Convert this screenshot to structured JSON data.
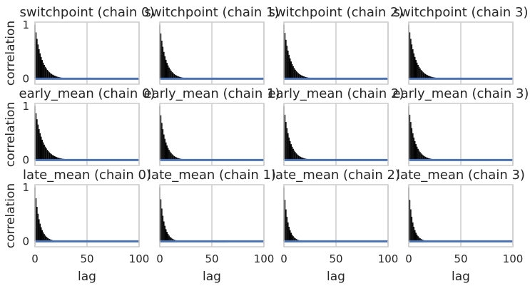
{
  "chart_data": {
    "type": "bar",
    "layout": {
      "rows": 3,
      "cols": 4
    },
    "xlim": [
      0,
      100
    ],
    "ylim": [
      -0.1,
      1.05
    ],
    "xticks": [
      0,
      50,
      100
    ],
    "yticks": [
      0,
      1
    ],
    "xlabel": "lag",
    "ylabel": "correlation",
    "grid": "vertical lines at x ticks",
    "colors": {
      "bars": "#000000",
      "zero_line": "#4c72b0",
      "grid": "#cccccc",
      "spine": "#cccccc",
      "text": "#262626"
    },
    "panels": [
      {
        "title": "switchpoint (chain 0)",
        "decay": 0.86,
        "tail": [
          [
            80,
            0.012
          ],
          [
            85,
            0.015
          ],
          [
            90,
            0.01
          ]
        ]
      },
      {
        "title": "switchpoint (chain 1)",
        "decay": 0.84,
        "tail": [
          [
            40,
            -0.006
          ],
          [
            55,
            0.006
          ]
        ]
      },
      {
        "title": "switchpoint (chain 2)",
        "decay": 0.85,
        "tail": [
          [
            60,
            -0.01
          ],
          [
            75,
            0.008
          ]
        ]
      },
      {
        "title": "switchpoint (chain 3)",
        "decay": 0.86,
        "tail": [
          [
            50,
            -0.006
          ],
          [
            90,
            0.006
          ]
        ]
      },
      {
        "title": "early_mean (chain 0)",
        "decay": 0.87,
        "tail": [
          [
            25,
            0.02
          ],
          [
            30,
            0.015
          ],
          [
            40,
            0.01
          ]
        ]
      },
      {
        "title": "early_mean (chain 1)",
        "decay": 0.83,
        "tail": [
          [
            35,
            -0.008
          ],
          [
            50,
            -0.006
          ],
          [
            65,
            -0.012
          ]
        ]
      },
      {
        "title": "early_mean (chain 2)",
        "decay": 0.84,
        "tail": [
          [
            45,
            -0.01
          ],
          [
            55,
            0.008
          ],
          [
            85,
            -0.006
          ]
        ]
      },
      {
        "title": "early_mean (chain 3)",
        "decay": 0.84,
        "tail": [
          [
            65,
            -0.01
          ],
          [
            70,
            -0.015
          ],
          [
            75,
            -0.015
          ]
        ]
      },
      {
        "title": "late_mean (chain 0)",
        "decay": 0.8,
        "tail": [
          [
            45,
            -0.006
          ],
          [
            55,
            -0.006
          ],
          [
            90,
            -0.01
          ]
        ]
      },
      {
        "title": "late_mean (chain 1)",
        "decay": 0.78,
        "tail": [
          [
            25,
            -0.01
          ],
          [
            55,
            -0.015
          ],
          [
            60,
            -0.015
          ],
          [
            85,
            -0.012
          ]
        ]
      },
      {
        "title": "late_mean (chain 2)",
        "decay": 0.77,
        "tail": [
          [
            40,
            -0.005
          ],
          [
            70,
            -0.005
          ]
        ]
      },
      {
        "title": "late_mean (chain 3)",
        "decay": 0.77,
        "tail": [
          [
            50,
            -0.005
          ],
          [
            80,
            -0.006
          ]
        ]
      }
    ]
  }
}
